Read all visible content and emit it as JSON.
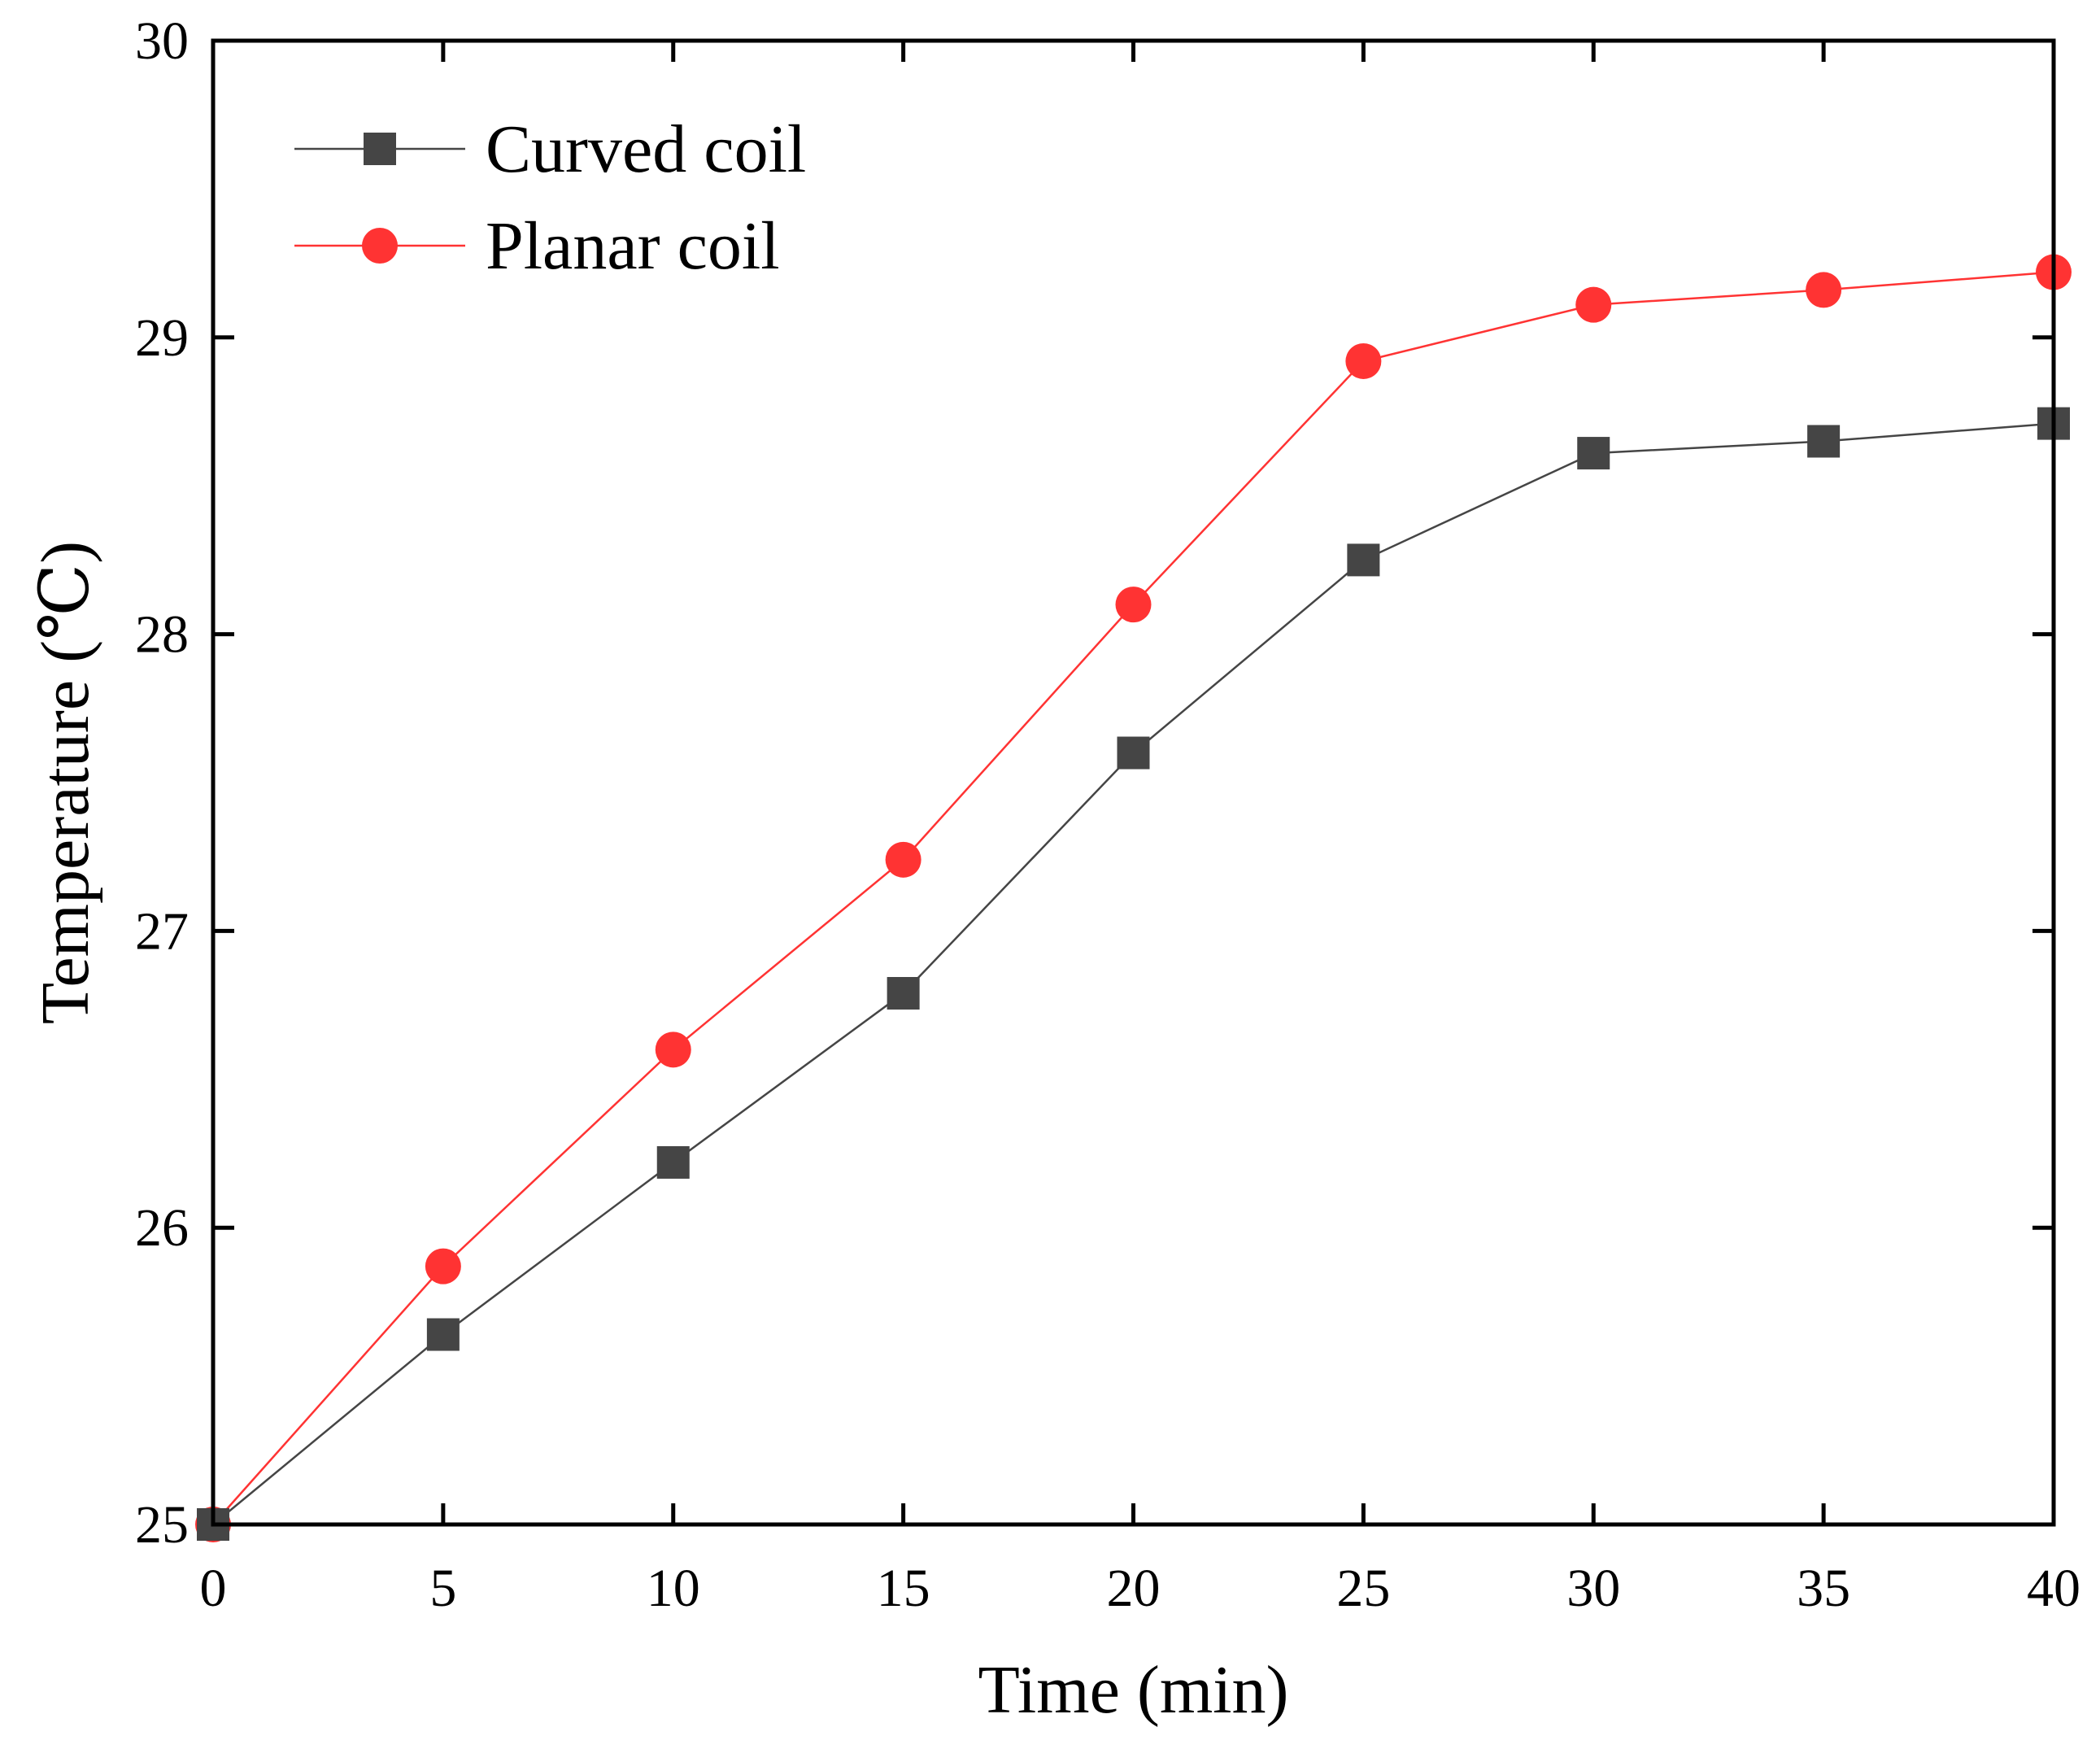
{
  "chart_data": {
    "type": "line",
    "title": "",
    "xlabel": "Time (min)",
    "ylabel": "Temperature (℃)",
    "xlim": [
      0,
      40
    ],
    "ylim": [
      25,
      30
    ],
    "xticks": [
      0,
      5,
      10,
      15,
      20,
      25,
      30,
      35,
      40
    ],
    "yticks": [
      25,
      26,
      27,
      28,
      29,
      30
    ],
    "grid": false,
    "legend_position": "top-left",
    "x": [
      0,
      5,
      10,
      15,
      20,
      25,
      30,
      35,
      40
    ],
    "series": [
      {
        "name": "Curved coil",
        "color": "#454545",
        "marker": "square",
        "values": [
          25.0,
          25.64,
          26.22,
          26.79,
          27.6,
          28.25,
          28.61,
          28.65,
          28.71
        ]
      },
      {
        "name": "Planar coil",
        "color": "#ff3333",
        "marker": "circle",
        "values": [
          25.0,
          25.87,
          26.6,
          27.24,
          28.1,
          28.92,
          29.11,
          29.16,
          29.22
        ]
      }
    ]
  }
}
